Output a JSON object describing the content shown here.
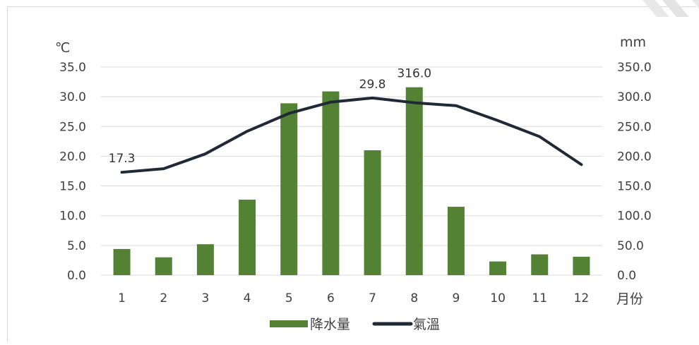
{
  "chart_data": {
    "type": "bar+line",
    "categories": [
      "1",
      "2",
      "3",
      "4",
      "5",
      "6",
      "7",
      "8",
      "9",
      "10",
      "11",
      "12"
    ],
    "series": [
      {
        "name": "降水量",
        "type": "bar",
        "axis": "right",
        "unit": "mm",
        "color": "#548235",
        "values": [
          44,
          30,
          52,
          127,
          289,
          309,
          210,
          316.0,
          115,
          23,
          35,
          31
        ]
      },
      {
        "name": "氣溫",
        "type": "line",
        "axis": "left",
        "unit": "℃",
        "color": "#1f2a36",
        "values": [
          17.3,
          17.9,
          20.4,
          24.2,
          27.2,
          29.1,
          29.8,
          29.0,
          28.5,
          26.0,
          23.3,
          18.6
        ]
      }
    ],
    "data_labels": [
      {
        "series": 1,
        "index": 0,
        "text": "17.3"
      },
      {
        "series": 1,
        "index": 6,
        "text": "29.8"
      },
      {
        "series": 0,
        "index": 7,
        "text": "316.0"
      }
    ],
    "left_axis": {
      "unit_label": "℃",
      "ylim": [
        0,
        35
      ],
      "ticks": [
        "0.0",
        "5.0",
        "10.0",
        "15.0",
        "20.0",
        "25.0",
        "30.0",
        "35.0"
      ]
    },
    "right_axis": {
      "unit_label": "mm",
      "ylim": [
        0,
        350
      ],
      "ticks": [
        "0.0",
        "50.0",
        "100.0",
        "150.0",
        "200.0",
        "250.0",
        "300.0",
        "350.0"
      ]
    },
    "x_axis": {
      "label": "月份"
    },
    "grid": true,
    "legend": {
      "position": "bottom",
      "items": [
        {
          "label": "降水量",
          "color": "#548235",
          "kind": "bar"
        },
        {
          "label": "氣溫",
          "color": "#1f2a36",
          "kind": "line"
        }
      ]
    },
    "gridline_color": "#d9d9d9"
  }
}
